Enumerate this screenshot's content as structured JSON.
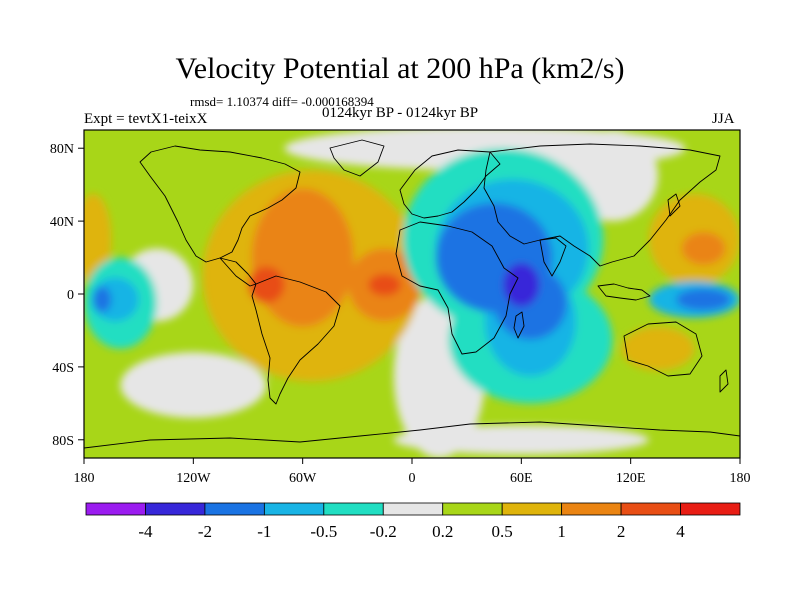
{
  "figure": {
    "title": "Velocity Potential at 200 hPa (km2/s)",
    "stats": "rmsd= 1.10374 diff= -0.000168394",
    "experiment": "Expt = tevtX1-teixX",
    "period": "0124kyr BP - 0124kyr BP",
    "season": "JJA"
  },
  "axes": {
    "x_ticks": [
      {
        "value": -180,
        "label": "180"
      },
      {
        "value": -120,
        "label": "120W"
      },
      {
        "value": -60,
        "label": "60W"
      },
      {
        "value": 0,
        "label": "0"
      },
      {
        "value": 60,
        "label": "60E"
      },
      {
        "value": 120,
        "label": "120E"
      },
      {
        "value": 180,
        "label": "180"
      }
    ],
    "y_ticks": [
      {
        "value": 80,
        "label": "80N"
      },
      {
        "value": 40,
        "label": "40N"
      },
      {
        "value": 0,
        "label": "0"
      },
      {
        "value": -40,
        "label": "40S"
      },
      {
        "value": -80,
        "label": "80S"
      }
    ],
    "lon_range": [
      -180,
      180
    ],
    "lat_range": [
      -90,
      90
    ]
  },
  "colorbar": {
    "colors": [
      "#9b1cf0",
      "#3727d9",
      "#1a73e3",
      "#19b4e5",
      "#21dec2",
      "#e6e6e6",
      "#a8d618",
      "#dfb40b",
      "#ea8412",
      "#e84e15",
      "#e81d14"
    ],
    "labels": [
      "-4",
      "-2",
      "-1",
      "-0.5",
      "-0.2",
      "0.2",
      "0.5",
      "1",
      "2",
      "4"
    ]
  },
  "map": {
    "background_level": 6,
    "regions": [
      {
        "name": "arctic-neutral",
        "level": 5,
        "lon": 40,
        "lat": 80,
        "rlon": 110,
        "rlat": 12
      },
      {
        "name": "central-pacific-neutral",
        "level": 5,
        "lon": -140,
        "lat": 5,
        "rlon": 20,
        "rlat": 20
      },
      {
        "name": "east-pacific-neutral",
        "level": 5,
        "lon": -120,
        "lat": -50,
        "rlon": 40,
        "rlat": 18
      },
      {
        "name": "south-atlantic-neutral",
        "level": 5,
        "lon": 15,
        "lat": -45,
        "rlon": 25,
        "rlat": 45
      },
      {
        "name": "antarctic-neutral",
        "level": 5,
        "lon": 60,
        "lat": -80,
        "rlon": 70,
        "rlat": 8
      },
      {
        "name": "west-pacific-neutral",
        "level": 5,
        "lon": 110,
        "lat": 65,
        "rlon": 25,
        "rlat": 25
      },
      {
        "name": "america-atlantic-positive",
        "level": 7,
        "lon": -55,
        "lat": 10,
        "rlon": 60,
        "rlat": 58
      },
      {
        "name": "america-positive-core",
        "level": 8,
        "lon": -60,
        "lat": 20,
        "rlon": 28,
        "rlat": 38
      },
      {
        "name": "atlantic-positive-core",
        "level": 8,
        "lon": -15,
        "lat": 5,
        "rlon": 20,
        "rlat": 20
      },
      {
        "name": "america-strong-core",
        "level": 9,
        "lon": -80,
        "lat": 5,
        "rlon": 10,
        "rlat": 10
      },
      {
        "name": "atlantic-strong-core",
        "level": 9,
        "lon": -15,
        "lat": 5,
        "rlon": 9,
        "rlat": 6
      },
      {
        "name": "west-pacific-positive",
        "level": 7,
        "lon": 155,
        "lat": 30,
        "rlon": 25,
        "rlat": 25
      },
      {
        "name": "west-pacific-positive-core",
        "level": 8,
        "lon": 160,
        "lat": 25,
        "rlon": 12,
        "rlat": 9
      },
      {
        "name": "east-pacific-positive",
        "level": 7,
        "lon": -175,
        "lat": 30,
        "rlon": 10,
        "rlat": 25
      },
      {
        "name": "australia-positive",
        "level": 7,
        "lon": 135,
        "lat": -30,
        "rlon": 20,
        "rlat": 12
      },
      {
        "name": "indian-ocean-low-outer",
        "level": 4,
        "lon": 50,
        "lat": 30,
        "rlon": 55,
        "rlat": 50
      },
      {
        "name": "indian-ocean-low-south",
        "level": 4,
        "lon": 65,
        "lat": -25,
        "rlon": 45,
        "rlat": 35
      },
      {
        "name": "indian-ocean-low-mid",
        "level": 3,
        "lon": 55,
        "lat": 25,
        "rlon": 42,
        "rlat": 38
      },
      {
        "name": "indian-ocean-low-mid-south",
        "level": 3,
        "lon": 65,
        "lat": -15,
        "rlon": 25,
        "rlat": 30
      },
      {
        "name": "indian-ocean-low-inner",
        "level": 2,
        "lon": 45,
        "lat": 20,
        "rlon": 32,
        "rlat": 30
      },
      {
        "name": "indian-ocean-low-inner-south",
        "level": 2,
        "lon": 65,
        "lat": -5,
        "rlon": 20,
        "rlat": 20
      },
      {
        "name": "indian-ocean-low-core",
        "level": 1,
        "lon": 60,
        "lat": 5,
        "rlon": 10,
        "rlat": 12
      },
      {
        "name": "east-pacific-low",
        "level": 4,
        "lon": -160,
        "lat": -5,
        "rlon": 20,
        "rlat": 25
      },
      {
        "name": "east-pacific-low-inner",
        "level": 3,
        "lon": -163,
        "lat": -3,
        "rlon": 13,
        "rlat": 12
      },
      {
        "name": "east-pacific-low-core",
        "level": 2,
        "lon": -170,
        "lat": -3,
        "rlon": 5,
        "rlat": 7
      },
      {
        "name": "west-pacific-low",
        "level": 3,
        "lon": 155,
        "lat": -3,
        "rlon": 25,
        "rlat": 10
      },
      {
        "name": "west-pacific-low-core",
        "level": 2,
        "lon": 160,
        "lat": -3,
        "rlon": 15,
        "rlat": 6
      }
    ]
  }
}
